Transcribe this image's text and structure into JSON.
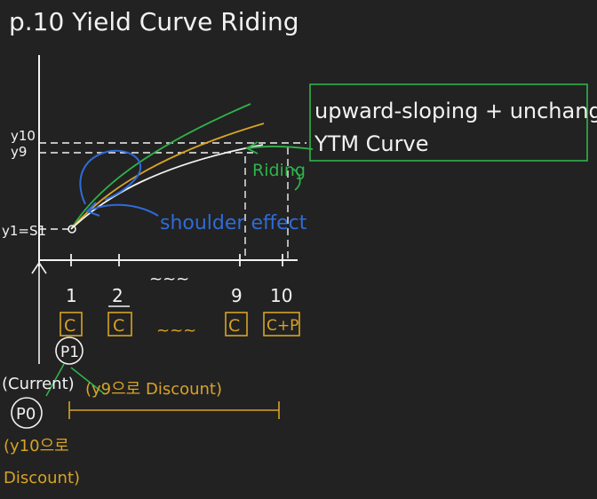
{
  "page_title": "p.10 Yield Curve Riding",
  "colors": {
    "background": "#222222",
    "ink": "#f2f2f2",
    "green": "#2fb34a",
    "yellow": "#d8a325",
    "blue": "#2f6bd8"
  },
  "axis_labels": {
    "y10": "y10",
    "y9": "y9",
    "y1_s1": "y1=S1"
  },
  "x_ticks": [
    "1",
    "2",
    "9",
    "10"
  ],
  "x_ellipsis": "~~~",
  "cash_flows": {
    "labels": [
      "C",
      "C",
      "C+P"
    ],
    "ellipsis": "~~~",
    "extra_c": "C"
  },
  "annotations": {
    "riding": "Riding",
    "shoulder_effect": "shoulder effect",
    "box_line1": "upward-sloping + unchanged",
    "box_line2": "YTM Curve",
    "p1": "P1",
    "p0": "P0",
    "current": "(Current)",
    "y9_discount": "(y9으로 Discount)",
    "y10_discount_1": "(y10으로",
    "y10_discount_2": "Discount)"
  },
  "icons": {
    "circle_marker": "circle-marker-icon",
    "up_arrow": "up-arrow-icon"
  }
}
